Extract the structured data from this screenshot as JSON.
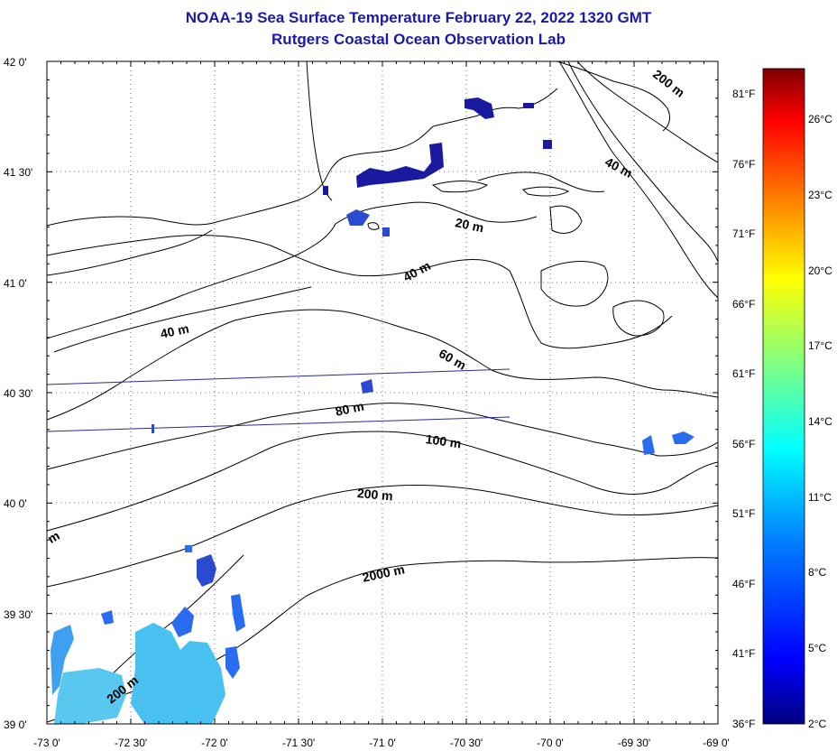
{
  "title": {
    "line1": "NOAA-19 Sea Surface Temperature February 22, 2022 1320 GMT",
    "line2": "Rutgers Coastal Ocean Observation Lab"
  },
  "lat_labels": [
    "42 0'",
    "41 30'",
    "41 0'",
    "40 30'",
    "40 0'",
    "39 30'",
    "39 0'"
  ],
  "lon_labels": [
    "-73 0'",
    "-72 30'",
    "-72 0'",
    "-71 30'",
    "-71 0'",
    "-70 30'",
    "-70 0'",
    "-69 30'",
    "-69 0'"
  ],
  "fahrenheit_labels": [
    "81°F",
    "76°F",
    "71°F",
    "66°F",
    "61°F",
    "56°F",
    "51°F",
    "46°F",
    "41°F",
    "36°F"
  ],
  "celsius_labels": [
    "26°C",
    "23°C",
    "20°C",
    "17°C",
    "14°C",
    "11°C",
    "8°C",
    "5°C",
    "2°C"
  ],
  "depth_labels": [
    "200 m",
    "40 m",
    "20 m",
    "40 m",
    "40 m",
    "60 m",
    "80 m",
    "100 m",
    "200 m",
    "2000 m",
    "200 m",
    "m"
  ],
  "colorbar": {
    "stops": [
      "#000080",
      "#0000ff",
      "#0080ff",
      "#00ffff",
      "#80ff80",
      "#ffff00",
      "#ff8000",
      "#ff0000",
      "#800000"
    ]
  },
  "colors": {
    "title": "#1a1aa8",
    "coast": "#000000",
    "track": "#2a2a9a",
    "sst_cold": "#1a1aa0",
    "sst_mid": "#2a6cf0",
    "sst_cyan": "#40c8f0"
  }
}
